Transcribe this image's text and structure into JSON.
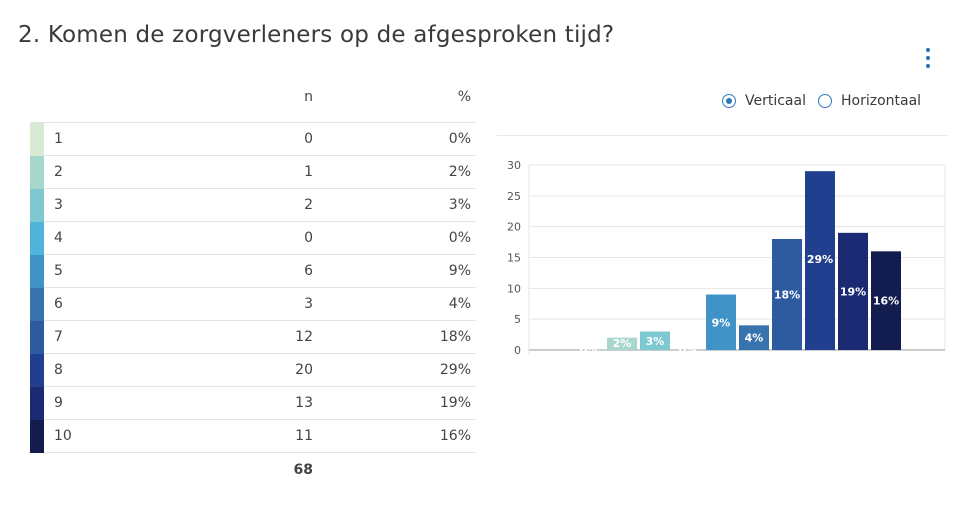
{
  "title": "2. Komen de zorgverleners op de afgesproken tijd?",
  "menu_icon": "kebab-menu-icon",
  "table": {
    "col_n": "n",
    "col_pct": "%",
    "rows": [
      {
        "label": "1",
        "n": "0",
        "pct": "0%",
        "color": "#d9ead3"
      },
      {
        "label": "2",
        "n": "1",
        "pct": "2%",
        "color": "#a8d8cc"
      },
      {
        "label": "3",
        "n": "2",
        "pct": "3%",
        "color": "#7ec8d2"
      },
      {
        "label": "4",
        "n": "0",
        "pct": "0%",
        "color": "#4fb3da"
      },
      {
        "label": "5",
        "n": "6",
        "pct": "9%",
        "color": "#3f93c6"
      },
      {
        "label": "6",
        "n": "3",
        "pct": "4%",
        "color": "#3774ae"
      },
      {
        "label": "7",
        "n": "12",
        "pct": "18%",
        "color": "#2e5aa0"
      },
      {
        "label": "8",
        "n": "20",
        "pct": "29%",
        "color": "#213f8f"
      },
      {
        "label": "9",
        "n": "13",
        "pct": "19%",
        "color": "#1b2a73"
      },
      {
        "label": "10",
        "n": "11",
        "pct": "16%",
        "color": "#121c4e"
      }
    ],
    "total": "68"
  },
  "view_toggle": {
    "options": [
      "Verticaal",
      "Horizontaal"
    ],
    "selected": "Verticaal"
  },
  "chart_data": {
    "type": "bar",
    "categories": [
      "1",
      "2",
      "3",
      "4",
      "5",
      "6",
      "7",
      "8",
      "9",
      "10"
    ],
    "values": [
      0,
      2,
      3,
      0,
      9,
      4,
      18,
      29,
      19,
      16
    ],
    "data_labels": [
      "0%",
      "2%",
      "3%",
      "0%",
      "9%",
      "4%",
      "18%",
      "29%",
      "19%",
      "16%"
    ],
    "colors": [
      "#d9ead3",
      "#a8d8cc",
      "#7ec8d2",
      "#4fb3da",
      "#3f93c6",
      "#3774ae",
      "#2e5aa0",
      "#213f8f",
      "#1b2a73",
      "#121c4e"
    ],
    "yticks": [
      0,
      5,
      10,
      15,
      20,
      25,
      30
    ],
    "ylim": [
      0,
      30
    ],
    "grid": true,
    "legend": "none"
  }
}
